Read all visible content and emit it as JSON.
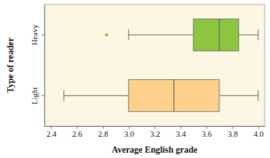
{
  "chart_data": {
    "type": "box",
    "orientation": "horizontal",
    "x_label": "Average English grade",
    "y_label": "Type of reader",
    "categories": [
      "Heavy",
      "Light"
    ],
    "boxes": [
      {
        "min": 3.0,
        "q1": 3.5,
        "median": 3.7,
        "q3": 3.85,
        "max": 4.0,
        "outliers": [
          2.83
        ]
      },
      {
        "min": 2.5,
        "q1": 3.0,
        "median": 3.35,
        "q3": 3.7,
        "max": 4.0,
        "outliers": []
      }
    ],
    "colors": [
      "#8cc63f",
      "#fdd08c"
    ],
    "xlim": [
      2.35,
      4.05
    ],
    "xticks": [
      2.4,
      2.6,
      2.8,
      {
        "value": 3,
        "label": "3.0"
      },
      3.2,
      3.4,
      3.6,
      3.8,
      {
        "value": 4,
        "label": "4.0"
      }
    ]
  }
}
